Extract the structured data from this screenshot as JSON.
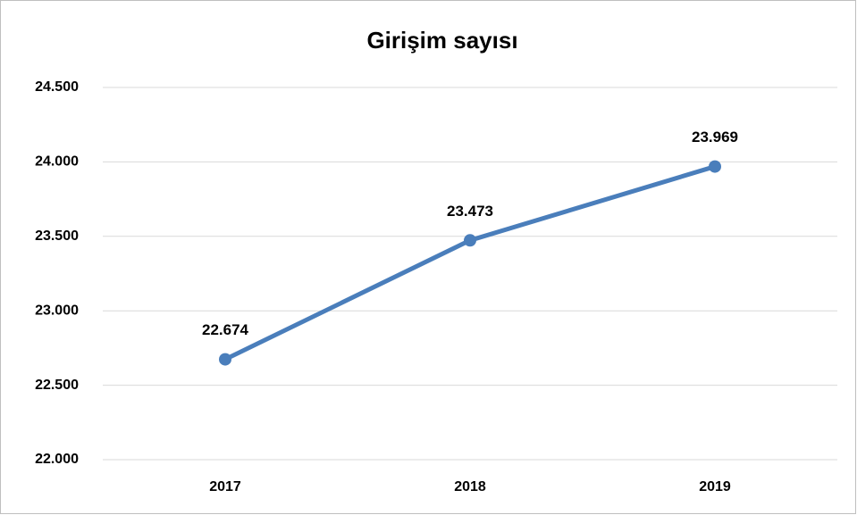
{
  "chart_data": {
    "type": "line",
    "title": "Girişim sayısı",
    "categories": [
      "2017",
      "2018",
      "2019"
    ],
    "values": [
      22674,
      23473,
      23969
    ],
    "value_labels": [
      "22.674",
      "23.473",
      "23.969"
    ],
    "color": "#4a7ebb",
    "ylim": [
      22000,
      24500
    ],
    "yticks": [
      {
        "value": 22000,
        "label": "22.000"
      },
      {
        "value": 22500,
        "label": "22.500"
      },
      {
        "value": 23000,
        "label": "23.000"
      },
      {
        "value": 23500,
        "label": "23.500"
      },
      {
        "value": 24000,
        "label": "24.000"
      },
      {
        "value": 24500,
        "label": "24.500"
      }
    ],
    "grid": true
  }
}
